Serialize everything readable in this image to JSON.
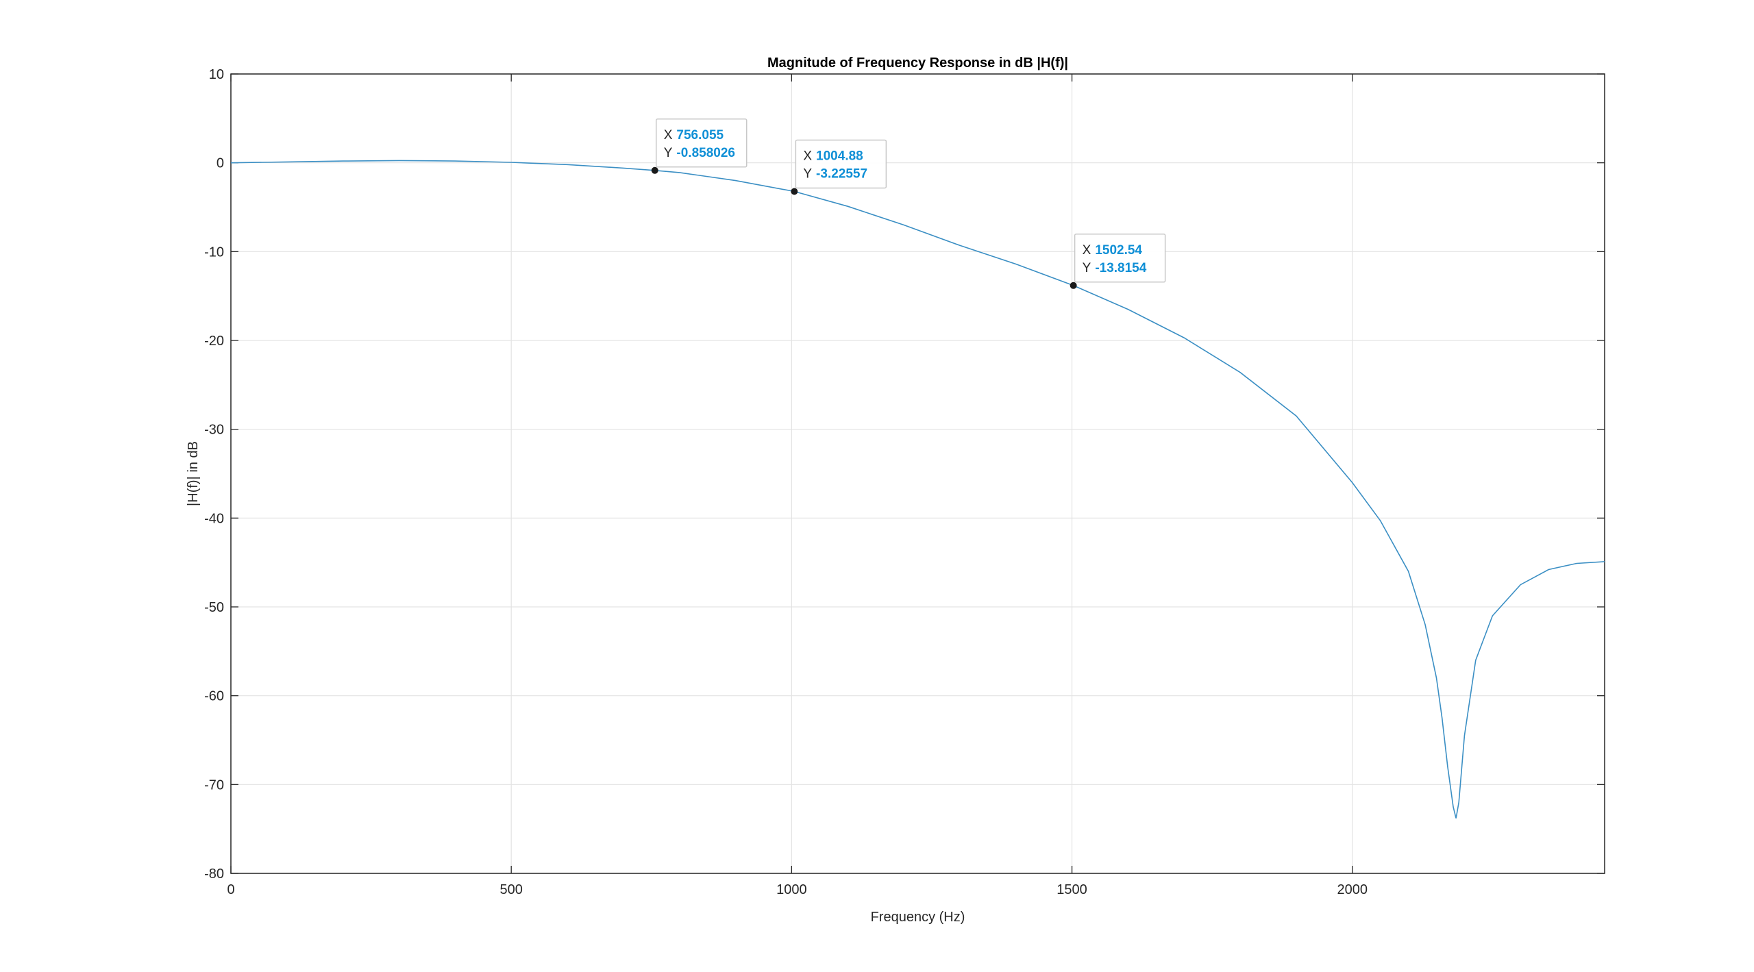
{
  "chart_data": {
    "type": "line",
    "title": "Magnitude of Frequency Response in dB |H(f)|",
    "xlabel": "Frequency (Hz)",
    "ylabel": "|H(f)| in dB",
    "xlim": [
      0,
      2450
    ],
    "ylim": [
      -80,
      10
    ],
    "xticks": [
      0,
      500,
      1000,
      1500,
      2000
    ],
    "yticks": [
      10,
      0,
      -10,
      -20,
      -30,
      -40,
      -50,
      -60,
      -70,
      -80
    ],
    "grid": true,
    "line_color": "#3b8fc4",
    "series": [
      {
        "x": [
          0,
          100,
          200,
          300,
          400,
          500,
          600,
          700,
          756.055,
          800,
          900,
          1004.88,
          1100,
          1200,
          1300,
          1400,
          1502.54,
          1600,
          1700,
          1800,
          1900,
          2000,
          2050,
          2100,
          2130,
          2150,
          2160,
          2170,
          2180,
          2185,
          2190,
          2200,
          2220,
          2250,
          2300,
          2350,
          2400,
          2450
        ],
        "y": [
          0,
          0.1,
          0.2,
          0.25,
          0.2,
          0.05,
          -0.2,
          -0.6,
          -0.858026,
          -1.1,
          -2.0,
          -3.22557,
          -4.9,
          -7.0,
          -9.3,
          -11.4,
          -13.8154,
          -16.5,
          -19.7,
          -23.6,
          -28.5,
          -36.0,
          -40.3,
          -46.0,
          -52.0,
          -58.0,
          -62.5,
          -68.0,
          -72.5,
          -73.8,
          -72.0,
          -64.5,
          -56.0,
          -51.0,
          -47.5,
          -45.8,
          -45.1,
          -44.9
        ]
      }
    ],
    "datatips": [
      {
        "x_label": "X",
        "y_label": "Y",
        "x": 756.055,
        "y": -0.858026
      },
      {
        "x_label": "X",
        "y_label": "Y",
        "x": 1004.88,
        "y": -3.22557
      },
      {
        "x_label": "X",
        "y_label": "Y",
        "x": 1502.54,
        "y": -13.8154
      }
    ],
    "datatip_color": "#0f8fd6"
  }
}
